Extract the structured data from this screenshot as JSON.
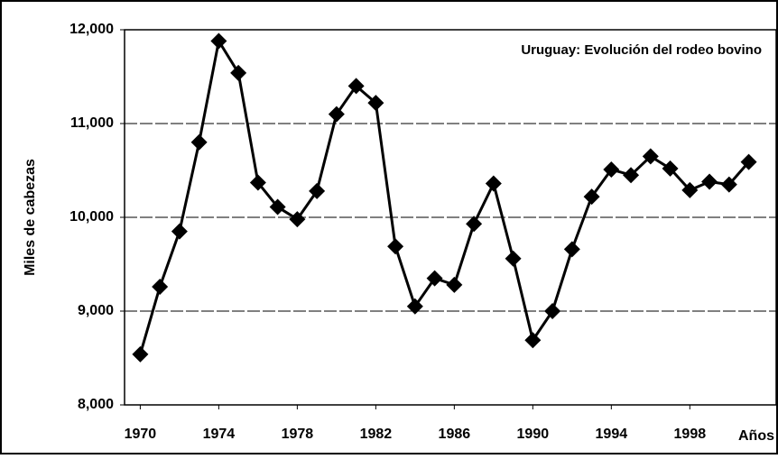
{
  "chart_data": {
    "type": "line",
    "title": "Uruguay: Evolución del rodeo bovino",
    "y_label": "Miles de cabezas",
    "x_label": "Años",
    "x": [
      1970,
      1971,
      1972,
      1973,
      1974,
      1975,
      1976,
      1977,
      1978,
      1979,
      1980,
      1981,
      1982,
      1983,
      1984,
      1985,
      1986,
      1987,
      1988,
      1989,
      1990,
      1991,
      1992,
      1993,
      1994,
      1995,
      1996,
      1997,
      1998,
      1999,
      2000,
      2001
    ],
    "series": [
      {
        "color": "#000000",
        "values": [
          8540,
          9260,
          9850,
          10800,
          11880,
          11540,
          10370,
          10110,
          9980,
          10280,
          11100,
          11400,
          11220,
          9690,
          9050,
          9350,
          9280,
          9930,
          10360,
          9560,
          8690,
          9000,
          9660,
          10220,
          10510,
          10450,
          10650,
          10520,
          10290,
          10380,
          10350,
          10590
        ]
      }
    ],
    "xlim": [
      1969.2,
      2002.4
    ],
    "xticks": [
      1970,
      1974,
      1978,
      1982,
      1986,
      1990,
      1994,
      1998
    ],
    "ylim": [
      8000,
      12000
    ],
    "yticks": [
      {
        "value": 8000,
        "label": "8,000"
      },
      {
        "value": 9000,
        "label": "9,000"
      },
      {
        "value": 10000,
        "label": "10,000"
      },
      {
        "value": 11000,
        "label": "11,000"
      },
      {
        "value": 12000,
        "label": "12,000"
      }
    ],
    "grid": true
  }
}
